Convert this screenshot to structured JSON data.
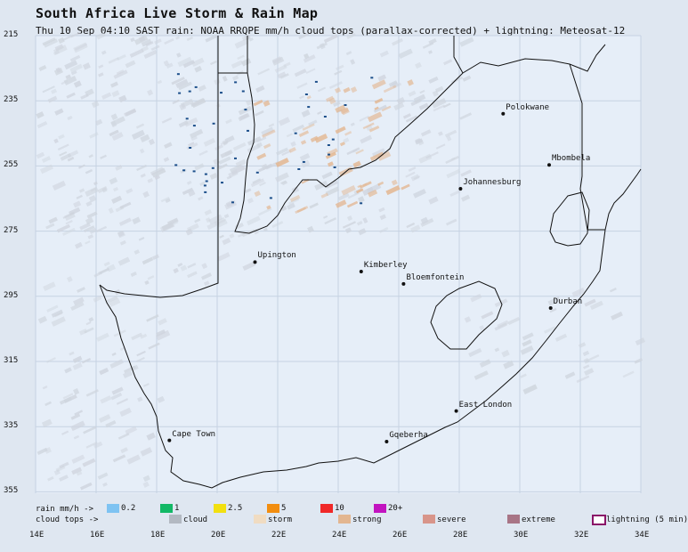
{
  "header": {
    "title": "South Africa Live Storm & Rain Map",
    "subtitle": "Thu 10 Sep 04:10 SAST   rain: NOAA RRQPE mm/h   cloud tops (parallax-corrected) + lightning: Meteosat-12"
  },
  "axes": {
    "lat_labels": [
      "215",
      "235",
      "255",
      "275",
      "295",
      "315",
      "335",
      "355"
    ],
    "lon_labels": [
      "14E",
      "16E",
      "18E",
      "20E",
      "22E",
      "24E",
      "26E",
      "28E",
      "30E",
      "32E",
      "34E"
    ]
  },
  "cities": [
    {
      "name": "Polokwane",
      "lon": 29.45,
      "lat": -23.9
    },
    {
      "name": "Mbombela",
      "lon": 30.97,
      "lat": -25.47
    },
    {
      "name": "Johannesburg",
      "lon": 28.04,
      "lat": -26.2
    },
    {
      "name": "Upington",
      "lon": 21.25,
      "lat": -28.45
    },
    {
      "name": "Kimberley",
      "lon": 24.76,
      "lat": -28.74
    },
    {
      "name": "Bloemfontein",
      "lon": 26.16,
      "lat": -29.12
    },
    {
      "name": "Durban",
      "lon": 31.02,
      "lat": -29.86
    },
    {
      "name": "East London",
      "lon": 27.9,
      "lat": -33.02
    },
    {
      "name": "Gqeberha",
      "lon": 25.6,
      "lat": -33.96
    },
    {
      "name": "Cape Town",
      "lon": 18.42,
      "lat": -33.92
    }
  ],
  "legend": {
    "rain_label": "rain mm/h ->",
    "rain": [
      {
        "label": "0.2",
        "color": "#7ec3f2"
      },
      {
        "label": "1",
        "color": "#12b866"
      },
      {
        "label": "2.5",
        "color": "#f2e010"
      },
      {
        "label": "5",
        "color": "#f28e10"
      },
      {
        "label": "10",
        "color": "#f02828"
      },
      {
        "label": "20+",
        "color": "#c214c0"
      }
    ],
    "cloud_label": "cloud tops ->",
    "cloud": [
      {
        "label": "cloud",
        "color": "#b3b9c2"
      },
      {
        "label": "storm",
        "color": "#f0dcc2"
      },
      {
        "label": "strong",
        "color": "#e3b690"
      },
      {
        "label": "severe",
        "color": "#d8958a"
      },
      {
        "label": "extreme",
        "color": "#a87586"
      }
    ],
    "lightning_label": "lightning (5 min)",
    "lightning_color": "#8a1468"
  },
  "colors": {
    "map_bg": "#e6eef8",
    "grid": "#c6d2e2",
    "border": "#111111",
    "cloud_light": "#cfd5de",
    "rain_dark": "#1c4f8a"
  }
}
